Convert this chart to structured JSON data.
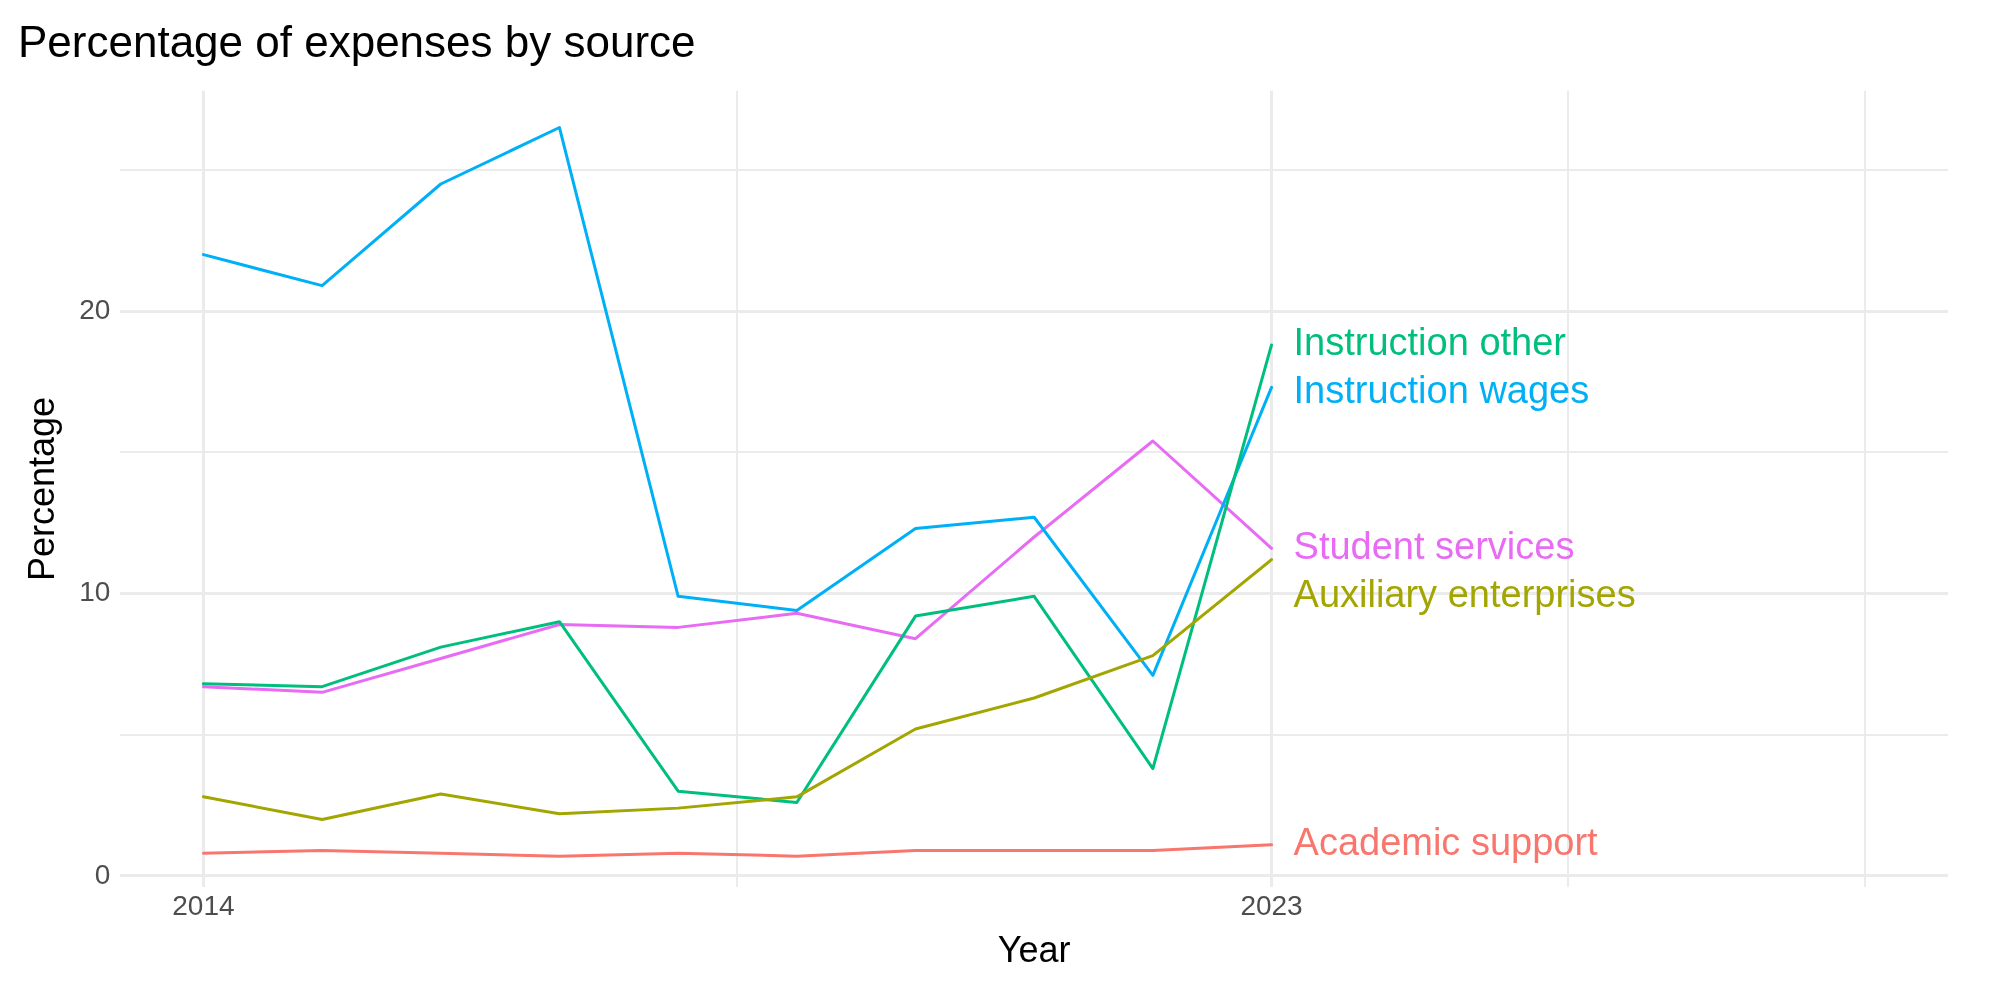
{
  "chart_data": {
    "type": "line",
    "title": "Percentage of expenses by source",
    "xlabel": "Year",
    "ylabel": "Percentage",
    "x": [
      2014,
      2015,
      2016,
      2017,
      2018,
      2019,
      2020,
      2021,
      2022,
      2023
    ],
    "series": [
      {
        "name": "Academic support",
        "color": "#f8766d",
        "values": [
          0.8,
          0.9,
          0.8,
          0.7,
          0.8,
          0.7,
          0.9,
          0.9,
          0.9,
          1.1
        ]
      },
      {
        "name": "Auxiliary enterprises",
        "color": "#a3a500",
        "values": [
          2.8,
          2.0,
          2.9,
          2.2,
          2.4,
          2.8,
          5.2,
          6.3,
          7.8,
          11.2
        ]
      },
      {
        "name": "Instruction other",
        "color": "#00bf7d",
        "values": [
          6.8,
          6.7,
          8.1,
          9.0,
          3.0,
          2.6,
          9.2,
          9.9,
          3.8,
          18.8
        ]
      },
      {
        "name": "Instruction wages",
        "color": "#00b0f6",
        "values": [
          22.0,
          20.9,
          24.5,
          26.5,
          9.9,
          9.4,
          12.3,
          12.7,
          7.1,
          17.3
        ]
      },
      {
        "name": "Student services",
        "color": "#e76bf3",
        "values": [
          6.7,
          6.5,
          7.7,
          8.9,
          8.8,
          9.3,
          8.4,
          12.0,
          15.4,
          11.6
        ]
      }
    ],
    "xlim": [
      2013.3,
      2028.7
    ],
    "xticks": [
      2014,
      {
        "value": 2018.5,
        "label": null
      },
      2023,
      {
        "value": 2025.5,
        "label": null
      },
      {
        "value": 2028,
        "label": null
      }
    ],
    "ylim": [
      -0.4,
      27.8
    ],
    "yticks": [
      0,
      {
        "value": 5,
        "label": null
      },
      10,
      {
        "value": 15,
        "label": null
      },
      20,
      {
        "value": 25,
        "label": null
      }
    ],
    "grid": true,
    "legend": false,
    "marker": "none",
    "line_style": "solid"
  }
}
